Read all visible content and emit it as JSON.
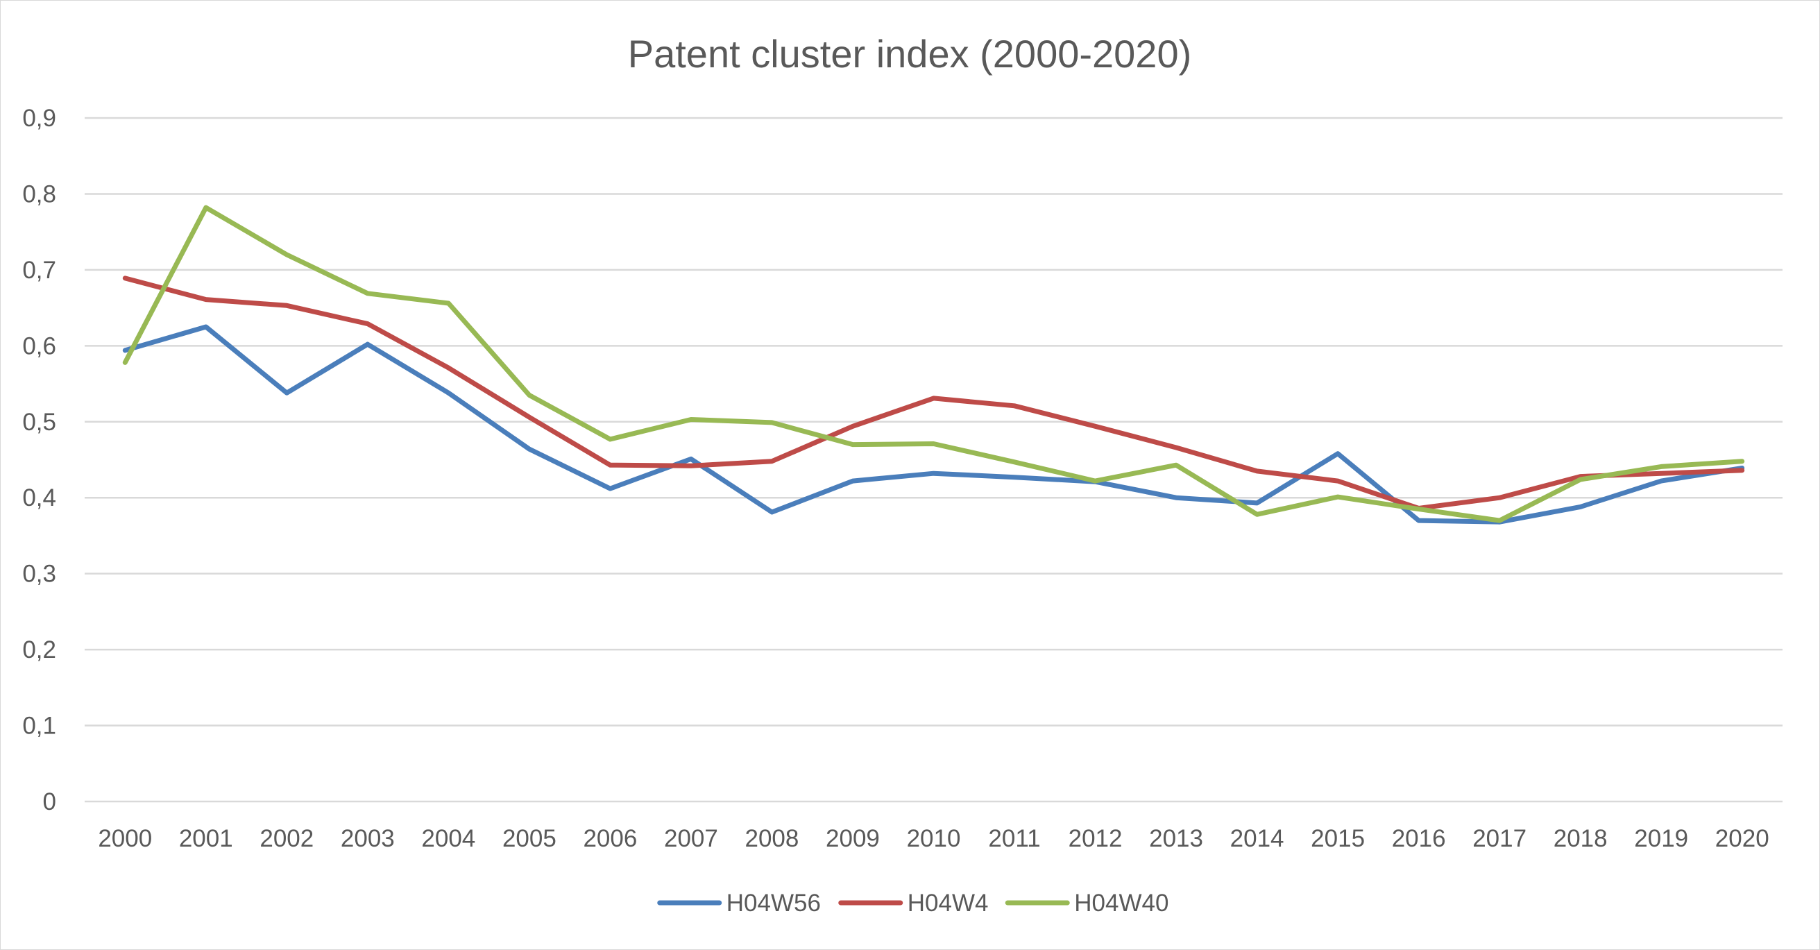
{
  "chart_data": {
    "type": "line",
    "title": "Patent cluster index (2000-2020)",
    "xlabel": "",
    "ylabel": "",
    "x": [
      "2000",
      "2001",
      "2002",
      "2003",
      "2004",
      "2005",
      "2006",
      "2007",
      "2008",
      "2009",
      "2010",
      "2011",
      "2012",
      "2013",
      "2014",
      "2015",
      "2016",
      "2017",
      "2018",
      "2019",
      "2020"
    ],
    "ylim": [
      0,
      0.9
    ],
    "yticks": [
      0,
      0.1,
      0.2,
      0.3,
      0.4,
      0.5,
      0.6,
      0.7,
      0.8,
      0.9
    ],
    "ytick_labels": [
      "0",
      "0,1",
      "0,2",
      "0,3",
      "0,4",
      "0,5",
      "0,6",
      "0,7",
      "0,8",
      "0,9"
    ],
    "grid": "horizontal",
    "legend_position": "bottom",
    "series": [
      {
        "name": "H04W56",
        "color": "#4a7ebb",
        "values": [
          0.594,
          0.625,
          0.538,
          0.602,
          0.538,
          0.464,
          0.412,
          0.451,
          0.381,
          0.422,
          0.432,
          0.427,
          0.421,
          0.4,
          0.393,
          0.458,
          0.37,
          0.368,
          0.388,
          0.422,
          0.439
        ]
      },
      {
        "name": "H04W4",
        "color": "#be4b48",
        "values": [
          0.689,
          0.661,
          0.653,
          0.629,
          0.571,
          0.506,
          0.443,
          0.442,
          0.448,
          0.494,
          0.531,
          0.521,
          0.494,
          0.466,
          0.435,
          0.422,
          0.386,
          0.4,
          0.428,
          0.432,
          0.436
        ]
      },
      {
        "name": "H04W40",
        "color": "#98b954",
        "values": [
          0.578,
          0.782,
          0.72,
          0.669,
          0.656,
          0.535,
          0.477,
          0.503,
          0.499,
          0.47,
          0.471,
          0.447,
          0.422,
          0.443,
          0.378,
          0.401,
          0.385,
          0.37,
          0.424,
          0.441,
          0.448
        ]
      }
    ]
  }
}
